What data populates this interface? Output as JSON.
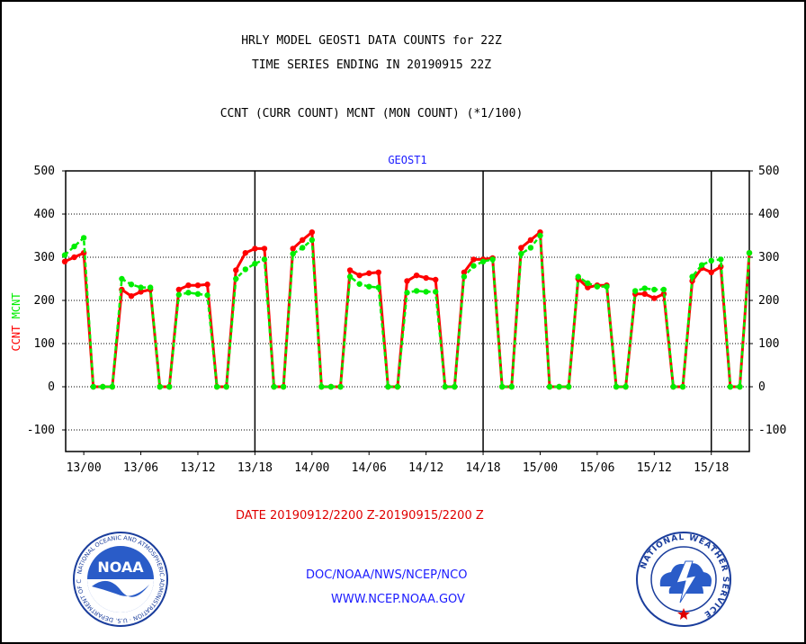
{
  "header": {
    "title_line1": "HRLY MODEL GEOST1 DATA COUNTS for 22Z",
    "title_line2": "TIME SERIES ENDING IN 20190915 22Z",
    "subtitle": "CCNT (CURR COUNT) MCNT (MON COUNT) (*1/100)"
  },
  "footer": {
    "date_range": "DATE 20190912/2200 Z-20190915/2200 Z",
    "org": "DOC/NOAA/NWS/NCEP/NCO",
    "url": "WWW.NCEP.NOAA.GOV"
  },
  "logos": {
    "noaa_text": "NOAA",
    "noaa_ring": "NATIONAL OCEANIC AND ATMOSPHERIC ADMINISTRATION · U.S. DEPARTMENT OF COMMERCE",
    "nws_ring": "NATIONAL WEATHER SERVICE"
  },
  "colors": {
    "ccnt": "#ff0000",
    "mcnt": "#00ee00",
    "panel_title": "#1a1aff",
    "axis": "#000000"
  },
  "chart_data": {
    "type": "line",
    "title": "GEOST1",
    "ylabel_series": [
      "CCNT",
      "MCNT"
    ],
    "ylim": [
      -150,
      500
    ],
    "yticks": [
      -100,
      0,
      100,
      200,
      300,
      400,
      500
    ],
    "grid": "dotted horizontal",
    "x_start_hour": 22,
    "x_tick_labels": [
      {
        "hour": 2,
        "label": "13/00"
      },
      {
        "hour": 8,
        "label": "13/06"
      },
      {
        "hour": 14,
        "label": "13/12"
      },
      {
        "hour": 20,
        "label": "13/18"
      },
      {
        "hour": 26,
        "label": "14/00"
      },
      {
        "hour": 32,
        "label": "14/06"
      },
      {
        "hour": 38,
        "label": "14/12"
      },
      {
        "hour": 44,
        "label": "14/18"
      },
      {
        "hour": 50,
        "label": "15/00"
      },
      {
        "hour": 56,
        "label": "15/06"
      },
      {
        "hour": 62,
        "label": "15/12"
      },
      {
        "hour": 68,
        "label": "15/18"
      }
    ],
    "day_boundaries": [
      "13/18",
      "14/18",
      "15/18"
    ],
    "series": [
      {
        "name": "CCNT",
        "color": "#ff0000",
        "values": [
          290,
          300,
          310,
          0,
          0,
          0,
          225,
          210,
          220,
          225,
          0,
          0,
          225,
          235,
          235,
          237,
          0,
          0,
          270,
          310,
          320,
          320,
          0,
          0,
          320,
          340,
          358,
          0,
          0,
          0,
          270,
          258,
          263,
          265,
          0,
          0,
          245,
          258,
          252,
          248,
          0,
          0,
          265,
          295,
          295,
          298,
          0,
          0,
          322,
          340,
          358,
          0,
          0,
          0,
          250,
          230,
          235,
          235,
          0,
          0,
          215,
          215,
          205,
          215,
          0,
          0,
          245,
          275,
          265,
          278,
          0,
          0,
          310
        ]
      },
      {
        "name": "MCNT",
        "color": "#00ee00",
        "values": [
          305,
          325,
          345,
          0,
          0,
          0,
          250,
          237,
          230,
          230,
          0,
          0,
          213,
          218,
          215,
          212,
          0,
          0,
          250,
          272,
          285,
          295,
          0,
          0,
          308,
          322,
          340,
          0,
          0,
          0,
          255,
          238,
          232,
          230,
          0,
          0,
          218,
          222,
          220,
          220,
          0,
          0,
          255,
          280,
          290,
          295,
          0,
          0,
          308,
          322,
          350,
          0,
          0,
          0,
          255,
          240,
          232,
          232,
          0,
          0,
          222,
          228,
          225,
          225,
          0,
          0,
          255,
          282,
          292,
          295,
          0,
          0,
          310
        ]
      }
    ]
  }
}
